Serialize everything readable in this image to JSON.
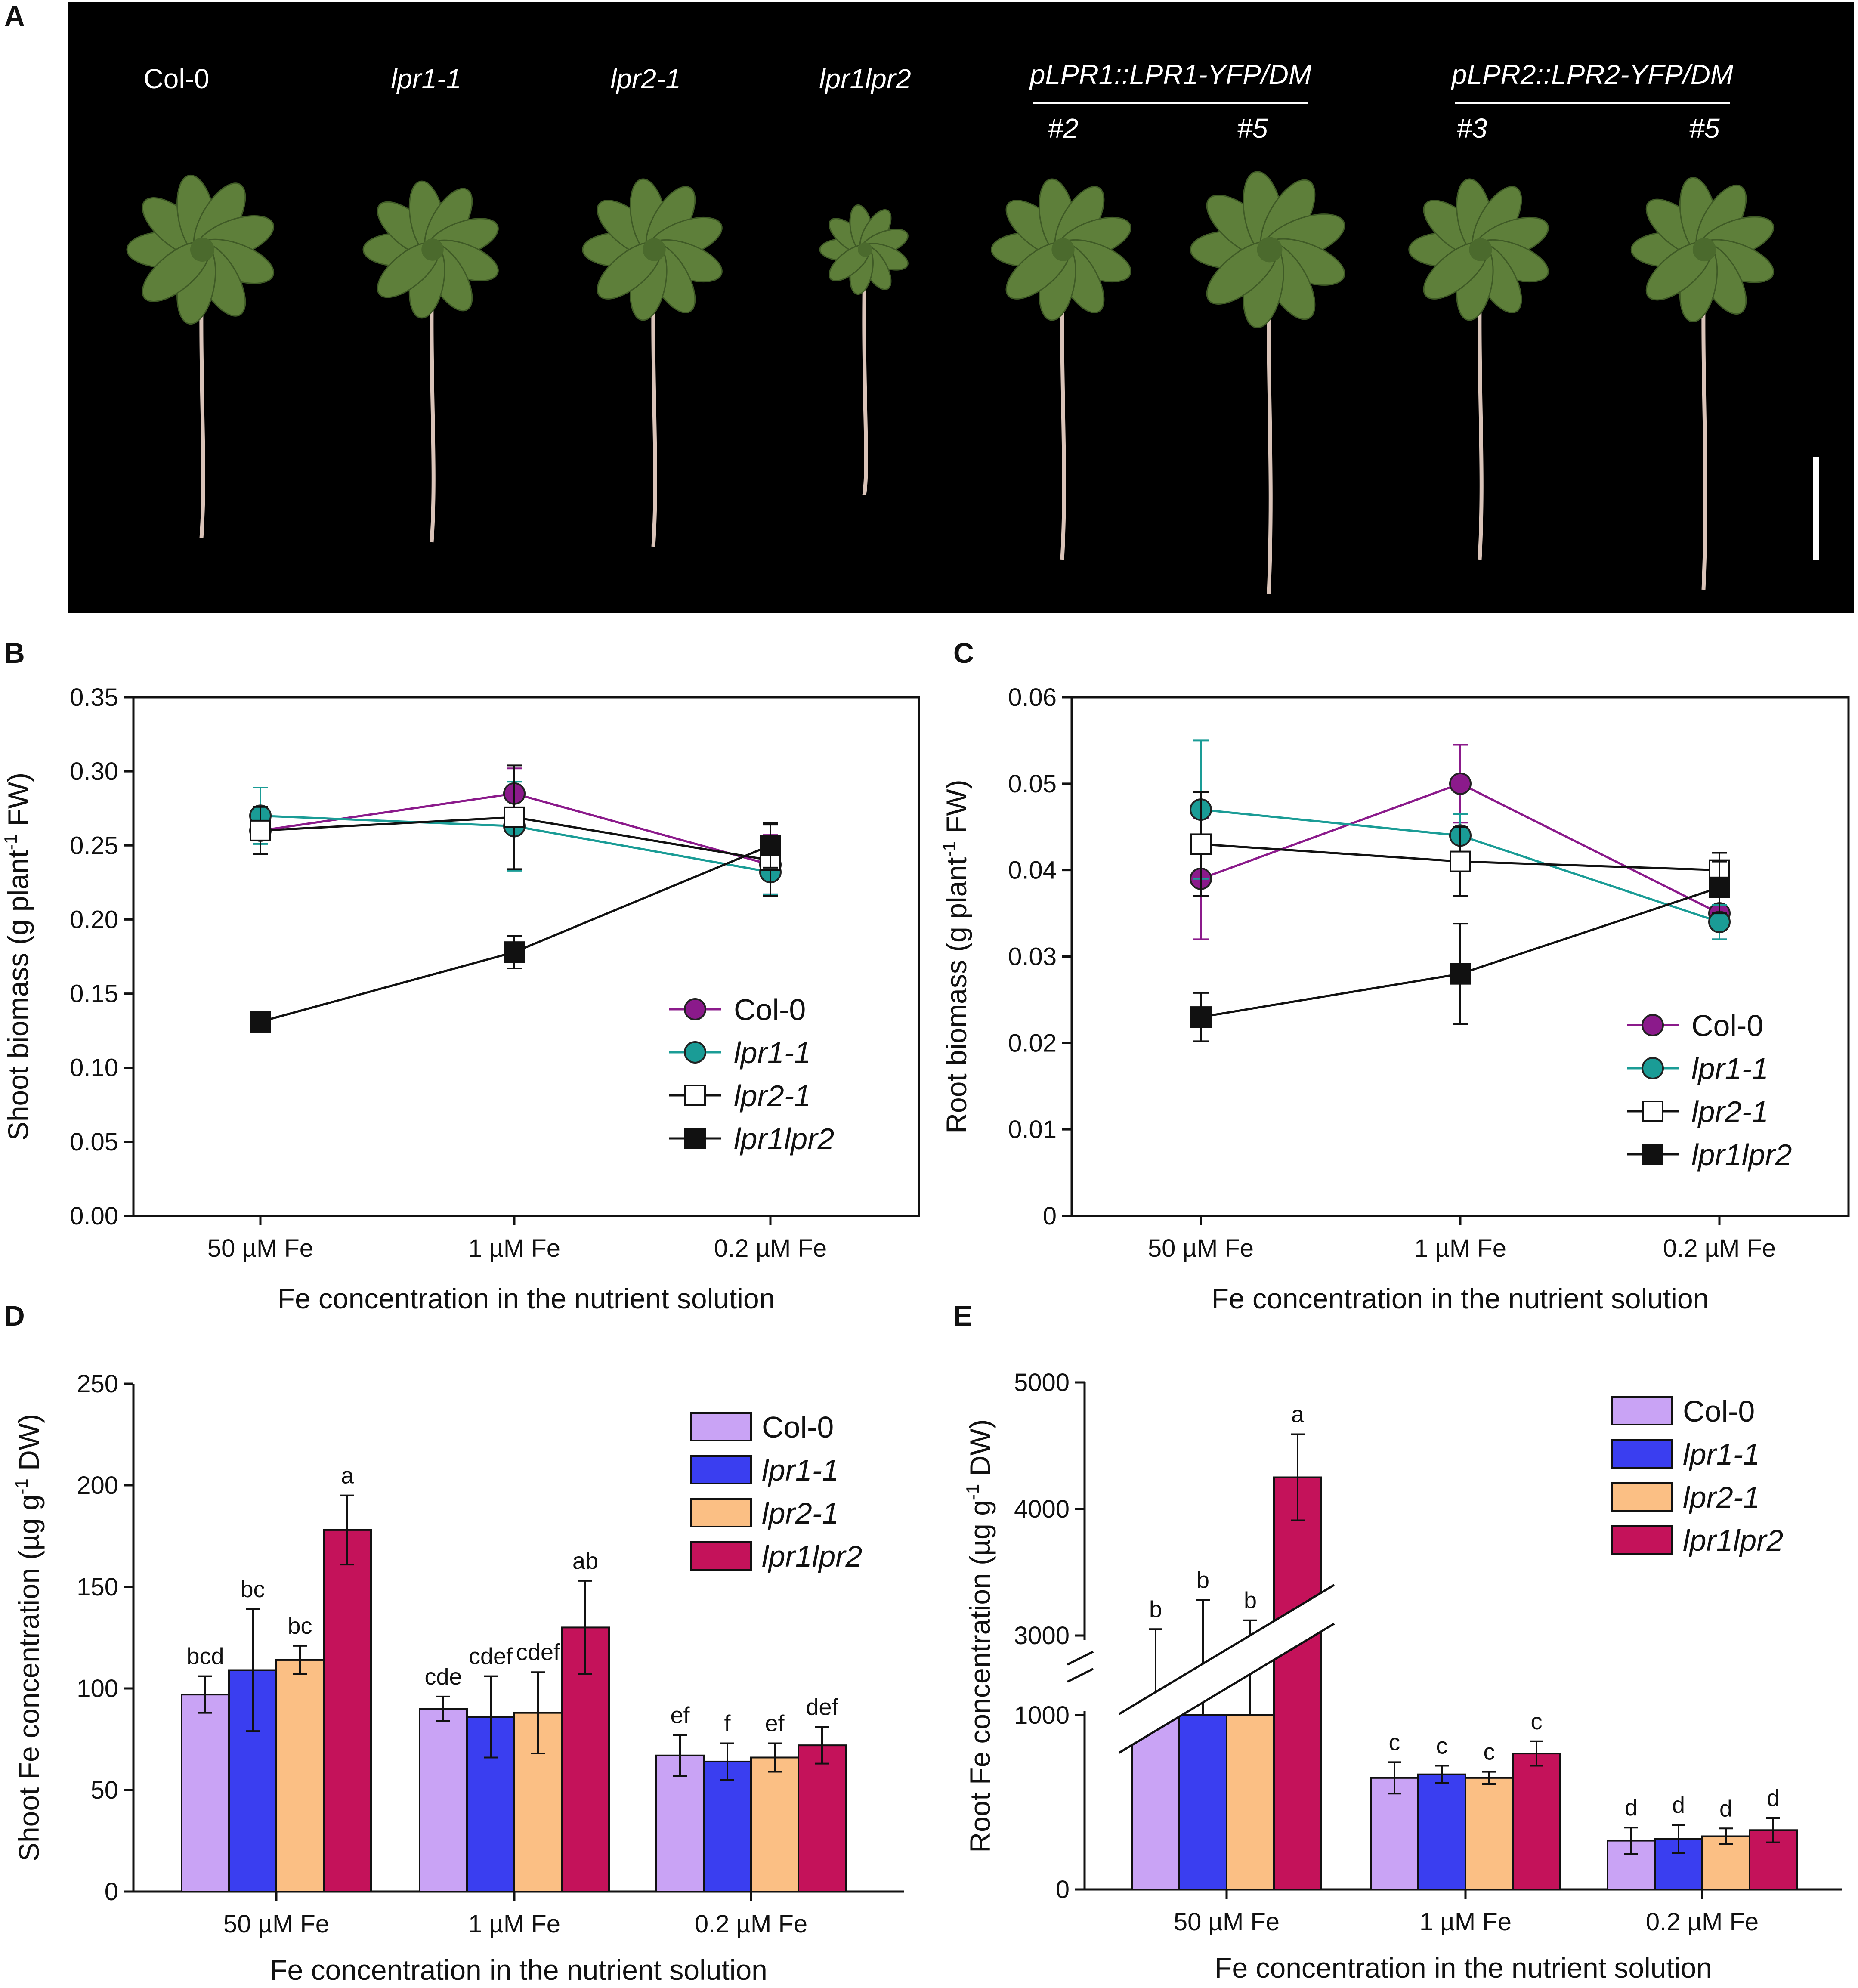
{
  "panels": {
    "A": {
      "label": "A",
      "genotype_labels": [
        "Col-0",
        "lpr1-1",
        "lpr2-1",
        "lpr1lpr2"
      ],
      "complementation_groups": [
        {
          "title": "pLPR1::LPR1-YFP/DM",
          "lines": [
            "#2",
            "#5"
          ]
        },
        {
          "title": "pLPR2::LPR2-YFP/DM",
          "lines": [
            "#3",
            "#5"
          ]
        }
      ],
      "colors": {
        "background": "#000000",
        "leaf": "#5e7f3a",
        "root": "#d9c3b8",
        "scale_bar": "#ffffff"
      }
    },
    "B": {
      "label": "B"
    },
    "C": {
      "label": "C"
    },
    "D": {
      "label": "D"
    },
    "E": {
      "label": "E"
    }
  },
  "legend": {
    "line": [
      {
        "name": "Col-0",
        "italic": false,
        "color": "#8b1a8b",
        "marker": "circle"
      },
      {
        "name": "lpr1-1",
        "italic": true,
        "color": "#1a9c96",
        "marker": "circle"
      },
      {
        "name": "lpr2-1",
        "italic": true,
        "color": "#111111",
        "marker": "open-square"
      },
      {
        "name": "lpr1lpr2",
        "italic": true,
        "color": "#111111",
        "marker": "filled-square"
      }
    ],
    "bar": [
      {
        "name": "Col-0",
        "italic": false,
        "color": "#c9a3f5"
      },
      {
        "name": "lpr1-1",
        "italic": true,
        "color": "#3a3ef0"
      },
      {
        "name": "lpr2-1",
        "italic": true,
        "color": "#fbbf84"
      },
      {
        "name": "lpr1lpr2",
        "italic": true,
        "color": "#c4125a"
      }
    ]
  },
  "chart_data": [
    {
      "panel": "B",
      "type": "line",
      "categories": [
        "50 µM Fe",
        "1 µM Fe",
        "0.2 µM Fe"
      ],
      "xlabel": "Fe concentration in the nutrient solution",
      "ylabel": "Shoot biomass (g plant-1 FW)",
      "ylabel_parts": [
        "Shoot biomass (g plant",
        "-1",
        " FW)"
      ],
      "ylim": [
        0,
        0.35
      ],
      "yticks": [
        "0.00",
        "0.05",
        "0.10",
        "0.15",
        "0.20",
        "0.25",
        "0.30",
        "0.35"
      ],
      "series": [
        {
          "name": "Col-0",
          "values": [
            0.26,
            0.285,
            0.237
          ],
          "errors": [
            0.0,
            0.017,
            0.02
          ]
        },
        {
          "name": "lpr1-1",
          "values": [
            0.27,
            0.263,
            0.232
          ],
          "errors": [
            0.019,
            0.03,
            0.015
          ]
        },
        {
          "name": "lpr2-1",
          "values": [
            0.26,
            0.269,
            0.24
          ],
          "errors": [
            0.016,
            0.035,
            0.024
          ]
        },
        {
          "name": "lpr1lpr2",
          "values": [
            0.131,
            0.178,
            0.25
          ],
          "errors": [
            0.006,
            0.011,
            0.015
          ]
        }
      ]
    },
    {
      "panel": "C",
      "type": "line",
      "categories": [
        "50 µM Fe",
        "1 µM Fe",
        "0.2 µM Fe"
      ],
      "xlabel": "Fe concentration in the nutrient solution",
      "ylabel": "Root biomass (g plant-1 FW)",
      "ylabel_parts": [
        "Root biomass (g plant",
        "-1",
        " FW)"
      ],
      "ylim": [
        0,
        0.06
      ],
      "yticks": [
        "0",
        "0.01",
        "0.02",
        "0.03",
        "0.04",
        "0.05",
        "0.06"
      ],
      "series": [
        {
          "name": "Col-0",
          "values": [
            0.039,
            0.05,
            0.035
          ],
          "errors": [
            0.007,
            0.0045,
            0.003
          ]
        },
        {
          "name": "lpr1-1",
          "values": [
            0.047,
            0.044,
            0.034
          ],
          "errors": [
            0.008,
            0.0025,
            0.002
          ]
        },
        {
          "name": "lpr2-1",
          "values": [
            0.043,
            0.041,
            0.04
          ],
          "errors": [
            0.006,
            0.004,
            0.002
          ]
        },
        {
          "name": "lpr1lpr2",
          "values": [
            0.023,
            0.028,
            0.038
          ],
          "errors": [
            0.0028,
            0.0058,
            0.003
          ]
        }
      ]
    },
    {
      "panel": "D",
      "type": "bar",
      "categories": [
        "50 µM Fe",
        "1 µM Fe",
        "0.2 µM Fe"
      ],
      "xlabel": "Fe concentration in the nutrient solution",
      "ylabel": "Shoot Fe concentration (µg g-1 DW)",
      "ylabel_parts": [
        "Shoot Fe concentration (µg g",
        "-1",
        " DW)"
      ],
      "ylim": [
        0,
        250
      ],
      "yticks": [
        "0",
        "50",
        "100",
        "150",
        "200",
        "250"
      ],
      "series": [
        {
          "name": "Col-0",
          "values": [
            97,
            90,
            67
          ],
          "errors": [
            9,
            6,
            10
          ],
          "letters": [
            "bcd",
            "cde",
            "ef"
          ]
        },
        {
          "name": "lpr1-1",
          "values": [
            109,
            86,
            64
          ],
          "errors": [
            30,
            20,
            9
          ],
          "letters": [
            "bc",
            "cdef",
            "f"
          ]
        },
        {
          "name": "lpr2-1",
          "values": [
            114,
            88,
            66
          ],
          "errors": [
            7,
            20,
            7
          ],
          "letters": [
            "bc",
            "cdef",
            "ef"
          ]
        },
        {
          "name": "lpr1lpr2",
          "values": [
            178,
            130,
            72
          ],
          "errors": [
            17,
            23,
            9
          ],
          "letters": [
            "a",
            "ab",
            "def"
          ]
        }
      ]
    },
    {
      "panel": "E",
      "type": "bar",
      "categories": [
        "50 µM Fe",
        "1 µM Fe",
        "0.2 µM Fe"
      ],
      "xlabel": "Fe concentration in the nutrient solution",
      "ylabel": "Root Fe concentration (µg g-1 DW)",
      "ylabel_parts": [
        "Root Fe concentration (µg g",
        "-1",
        " DW)"
      ],
      "axis_break": [
        1000,
        3000
      ],
      "ylim": [
        0,
        5000
      ],
      "yticks": [
        "0",
        "1000",
        "3000",
        "4000",
        "5000"
      ],
      "series": [
        {
          "name": "Col-0",
          "values": [
            2870,
            640,
            280
          ],
          "errors": [
            180,
            90,
            75
          ],
          "letters": [
            "b",
            "c",
            "d"
          ]
        },
        {
          "name": "lpr1-1",
          "values": [
            2900,
            660,
            290
          ],
          "errors": [
            380,
            50,
            80
          ],
          "letters": [
            "b",
            "c",
            "d"
          ]
        },
        {
          "name": "lpr2-1",
          "values": [
            2920,
            640,
            305
          ],
          "errors": [
            200,
            35,
            45
          ],
          "letters": [
            "b",
            "c",
            "d"
          ]
        },
        {
          "name": "lpr1lpr2",
          "values": [
            4250,
            780,
            340
          ],
          "errors": [
            340,
            70,
            70
          ],
          "letters": [
            "a",
            "c",
            "d"
          ]
        }
      ]
    }
  ]
}
